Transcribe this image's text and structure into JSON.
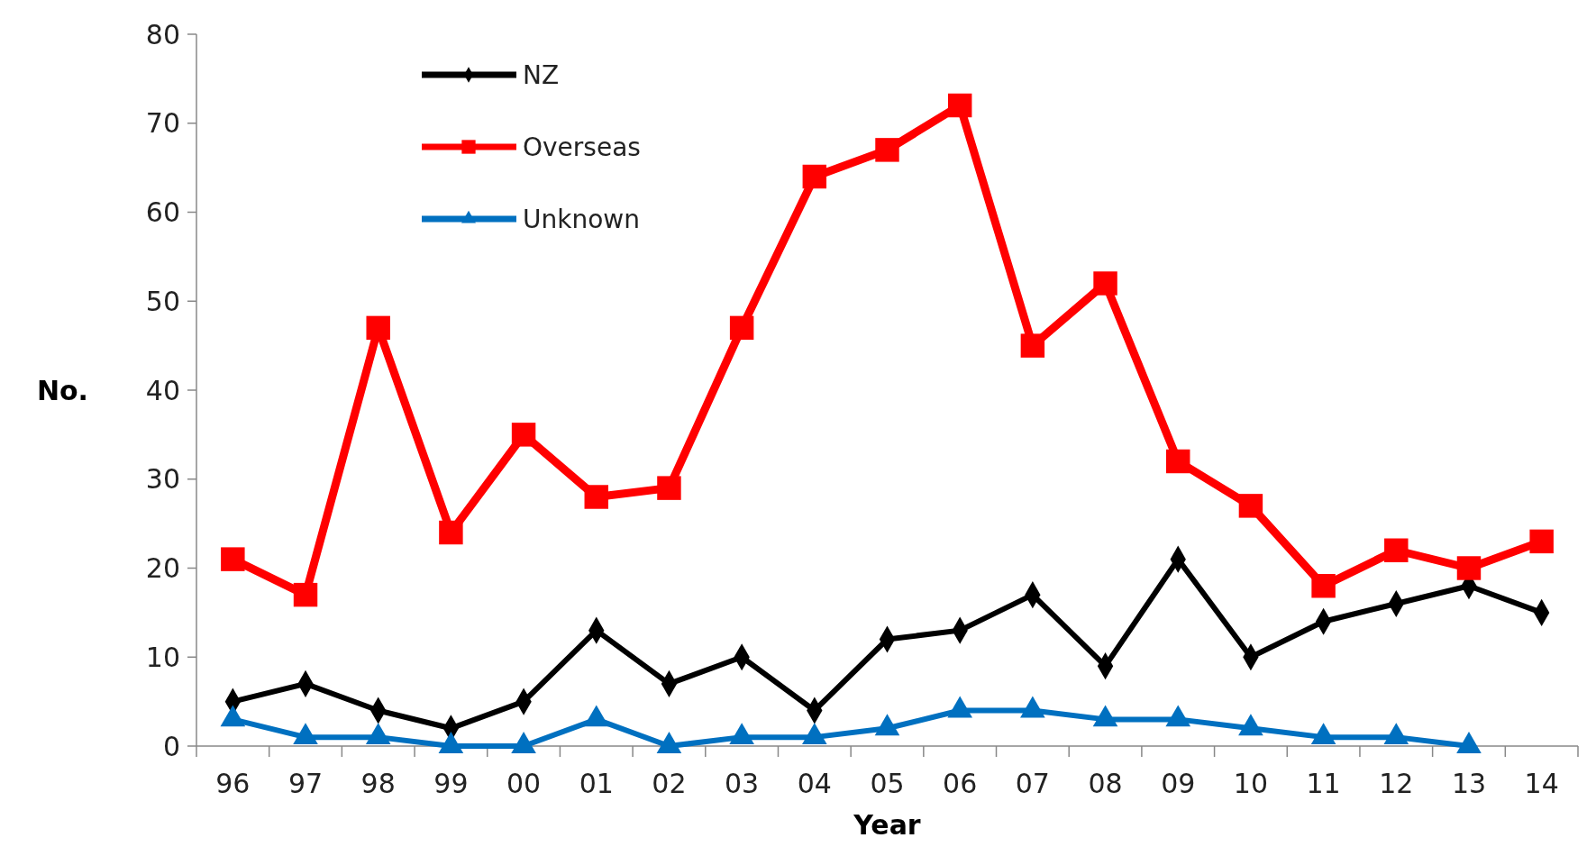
{
  "chart_data": {
    "type": "line",
    "xlabel": "Year",
    "ylabel": "No.",
    "categories": [
      "96",
      "97",
      "98",
      "99",
      "00",
      "01",
      "02",
      "03",
      "04",
      "05",
      "06",
      "07",
      "08",
      "09",
      "10",
      "11",
      "12",
      "13",
      "14"
    ],
    "series": [
      {
        "name": "NZ",
        "color": "#000000",
        "marker": "diamond",
        "values": [
          5,
          7,
          4,
          2,
          5,
          13,
          7,
          10,
          4,
          12,
          13,
          17,
          9,
          21,
          10,
          14,
          16,
          18,
          15
        ]
      },
      {
        "name": "Overseas",
        "color": "#ff0000",
        "marker": "square",
        "values": [
          21,
          17,
          47,
          24,
          35,
          28,
          29,
          47,
          64,
          67,
          72,
          45,
          52,
          32,
          27,
          18,
          22,
          20,
          23
        ]
      },
      {
        "name": "Unknown",
        "color": "#0070c0",
        "marker": "triangle",
        "values": [
          3,
          1,
          1,
          0,
          0,
          3,
          0,
          1,
          1,
          2,
          4,
          4,
          3,
          3,
          2,
          1,
          1,
          0,
          null
        ]
      }
    ],
    "ylim": [
      0,
      80
    ],
    "yticks": [
      0,
      10,
      20,
      30,
      40,
      50,
      60,
      70,
      80
    ],
    "grid": false,
    "legend": "top left",
    "line_style": "solid"
  }
}
